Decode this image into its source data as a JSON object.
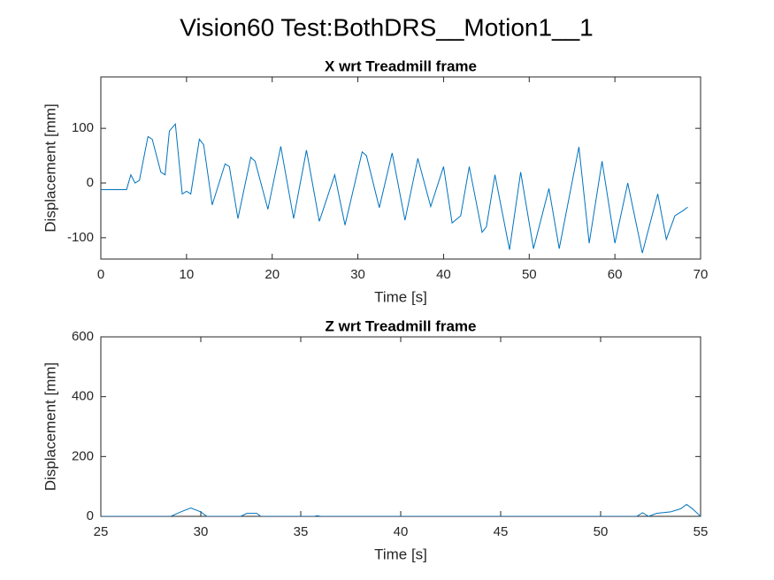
{
  "title": "Vision60 Test:BothDRS__Motion1__1",
  "chart_data": [
    {
      "type": "line",
      "title": "X wrt Treadmill frame",
      "xlabel": "Time [s]",
      "ylabel": "Displacement [mm]",
      "color": "#0072bd",
      "x": [
        0,
        3,
        3.5,
        4,
        4.5,
        5.5,
        6,
        7,
        7.5,
        8,
        8.7,
        9.5,
        10,
        10.5,
        11.5,
        12,
        13,
        14.5,
        15,
        16,
        17.5,
        18,
        19.5,
        21,
        22.5,
        24,
        25.5,
        27.3,
        28.5,
        30.5,
        31,
        32.5,
        34,
        35.5,
        37,
        38.5,
        40,
        41,
        42,
        43,
        44.5,
        45,
        46,
        47.7,
        49,
        50.5,
        52.3,
        53.5,
        55.8,
        57,
        58.5,
        60,
        61.5,
        63.2,
        65,
        66,
        67,
        68,
        68.5
      ],
      "values": [
        -12,
        -12,
        15,
        0,
        5,
        85,
        80,
        20,
        15,
        95,
        108,
        -20,
        -15,
        -20,
        80,
        70,
        -40,
        35,
        30,
        -65,
        47,
        40,
        -48,
        67,
        -65,
        60,
        -70,
        15,
        -77,
        57,
        50,
        -45,
        55,
        -68,
        45,
        -43,
        30,
        -73,
        -60,
        30,
        -90,
        -80,
        15,
        -122,
        20,
        -120,
        -10,
        -120,
        66,
        -110,
        40,
        -110,
        0,
        -128,
        -20,
        -103,
        -60,
        -50,
        -44
      ],
      "xlim": [
        0,
        70
      ],
      "xticks": [
        0,
        10,
        20,
        30,
        40,
        50,
        60,
        70
      ],
      "ylim": [
        -139,
        194
      ],
      "yticks": [
        -100,
        0,
        100
      ]
    },
    {
      "type": "line",
      "title": "Z wrt Treadmill frame",
      "xlabel": "Time [s]",
      "ylabel": "Displacement [mm]",
      "color": "#0072bd",
      "x": [
        25,
        28.5,
        29,
        29.5,
        30,
        30.3,
        32,
        32.3,
        32.8,
        33,
        35.7,
        35.8,
        36,
        51.8,
        52.1,
        52.4,
        52.8,
        53.5,
        54,
        54.3,
        54.6,
        55
      ],
      "values": [
        0,
        0,
        15,
        28,
        15,
        0,
        0,
        10,
        10,
        0,
        0,
        2,
        0,
        0,
        12,
        0,
        10,
        15,
        25,
        40,
        25,
        0
      ],
      "xlim": [
        25,
        55
      ],
      "xticks": [
        25,
        30,
        35,
        40,
        45,
        50,
        55
      ],
      "ylim": [
        0,
        600
      ],
      "yticks": [
        0,
        200,
        400,
        600
      ]
    }
  ]
}
